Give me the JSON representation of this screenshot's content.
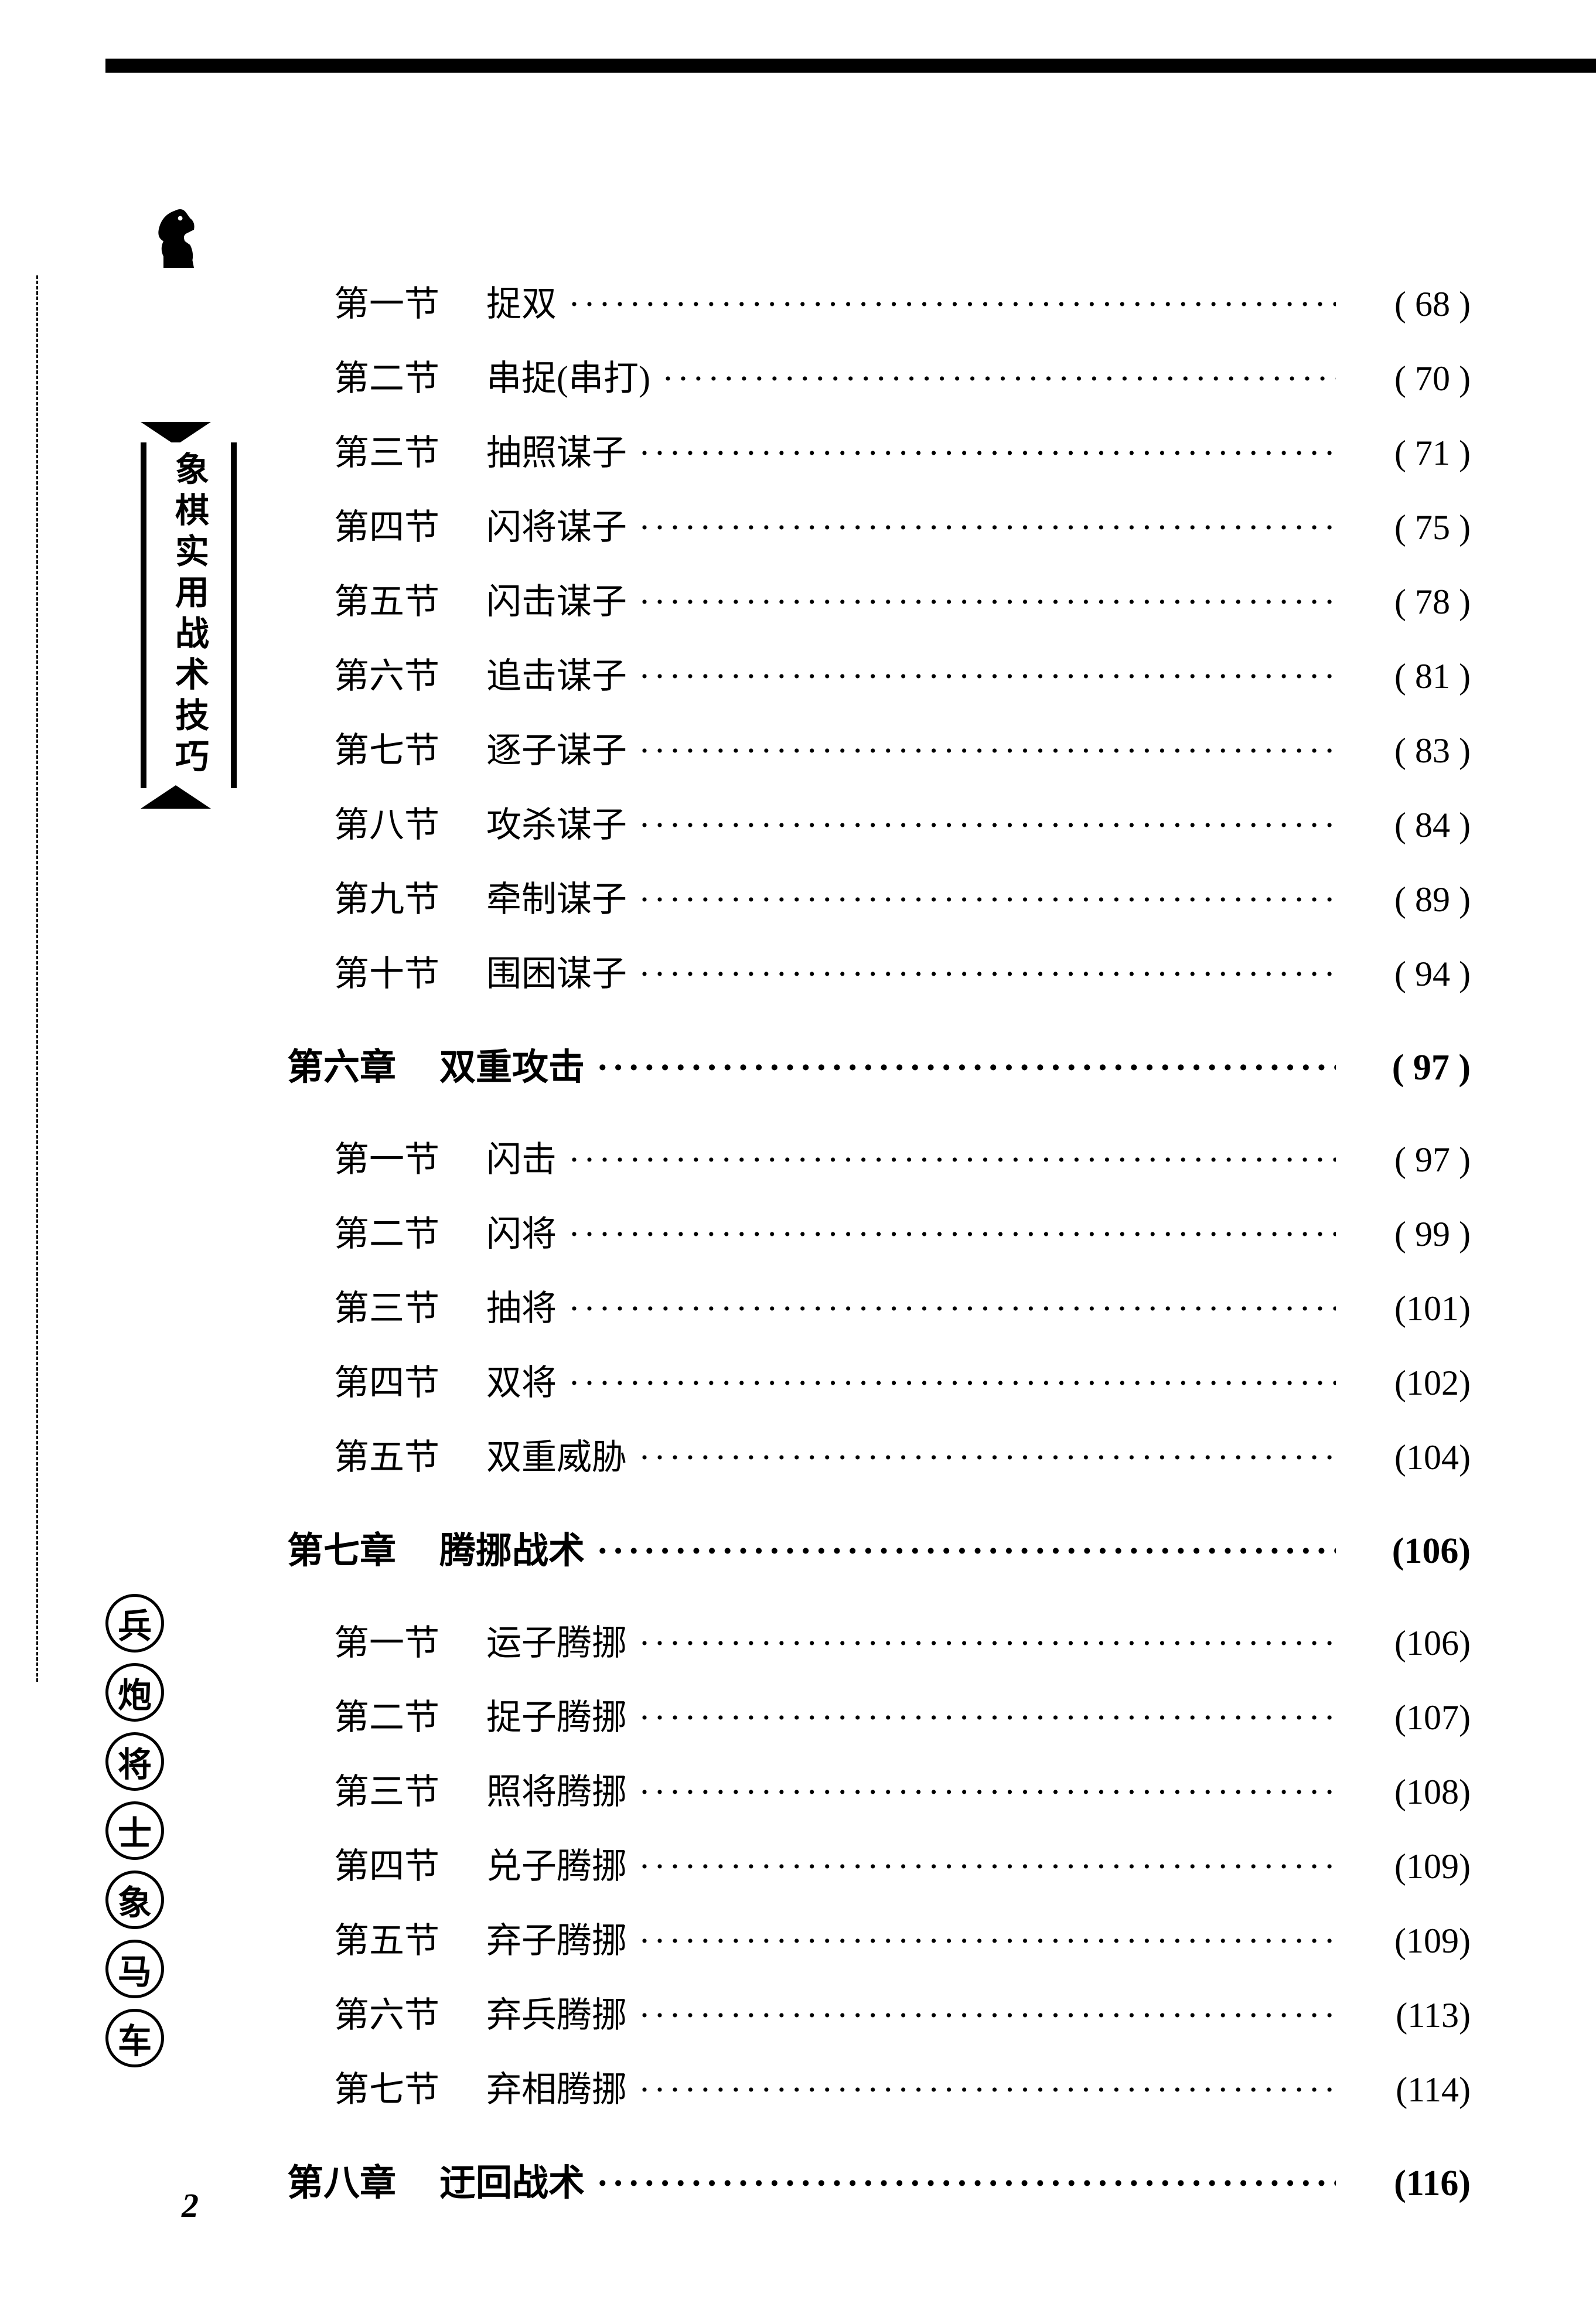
{
  "page_number": "2",
  "book_title": "象棋实用战术技巧",
  "piece_labels": [
    "兵",
    "炮",
    "将",
    "士",
    "象",
    "马",
    "车"
  ],
  "colors": {
    "background": "#ffffff",
    "text": "#000000",
    "border": "#000000"
  },
  "typography": {
    "body_fontsize": 60,
    "chapter_fontsize": 62,
    "title_fontsize": 58,
    "piece_fontsize": 58,
    "font_family": "SimSun"
  },
  "toc": [
    {
      "type": "section",
      "num": "第一节",
      "title": "捉双",
      "page": "( 68 )"
    },
    {
      "type": "section",
      "num": "第二节",
      "title": "串捉(串打)",
      "page": "( 70 )"
    },
    {
      "type": "section",
      "num": "第三节",
      "title": "抽照谋子",
      "page": "( 71 )"
    },
    {
      "type": "section",
      "num": "第四节",
      "title": "闪将谋子",
      "page": "( 75 )"
    },
    {
      "type": "section",
      "num": "第五节",
      "title": "闪击谋子",
      "page": "( 78 )"
    },
    {
      "type": "section",
      "num": "第六节",
      "title": "追击谋子",
      "page": "( 81 )"
    },
    {
      "type": "section",
      "num": "第七节",
      "title": "逐子谋子",
      "page": "( 83 )"
    },
    {
      "type": "section",
      "num": "第八节",
      "title": "攻杀谋子",
      "page": "( 84 )"
    },
    {
      "type": "section",
      "num": "第九节",
      "title": "牵制谋子",
      "page": "( 89 )"
    },
    {
      "type": "section",
      "num": "第十节",
      "title": "围困谋子",
      "page": "( 94 )"
    },
    {
      "type": "chapter",
      "num": "第六章",
      "title": "双重攻击",
      "page": "( 97 )"
    },
    {
      "type": "section",
      "num": "第一节",
      "title": "闪击",
      "page": "( 97 )"
    },
    {
      "type": "section",
      "num": "第二节",
      "title": "闪将",
      "page": "( 99 )"
    },
    {
      "type": "section",
      "num": "第三节",
      "title": "抽将",
      "page": "(101)"
    },
    {
      "type": "section",
      "num": "第四节",
      "title": "双将",
      "page": "(102)"
    },
    {
      "type": "section",
      "num": "第五节",
      "title": "双重威胁",
      "page": "(104)"
    },
    {
      "type": "chapter",
      "num": "第七章",
      "title": "腾挪战术",
      "page": "(106)"
    },
    {
      "type": "section",
      "num": "第一节",
      "title": "运子腾挪",
      "page": "(106)"
    },
    {
      "type": "section",
      "num": "第二节",
      "title": "捉子腾挪",
      "page": "(107)"
    },
    {
      "type": "section",
      "num": "第三节",
      "title": "照将腾挪",
      "page": "(108)"
    },
    {
      "type": "section",
      "num": "第四节",
      "title": "兑子腾挪",
      "page": "(109)"
    },
    {
      "type": "section",
      "num": "第五节",
      "title": "弃子腾挪",
      "page": "(109)"
    },
    {
      "type": "section",
      "num": "第六节",
      "title": "弃兵腾挪",
      "page": "(113)"
    },
    {
      "type": "section",
      "num": "第七节",
      "title": "弃相腾挪",
      "page": "(114)"
    },
    {
      "type": "chapter",
      "num": "第八章",
      "title": "迂回战术",
      "page": "(116)"
    }
  ],
  "leader_dots": "·························································"
}
